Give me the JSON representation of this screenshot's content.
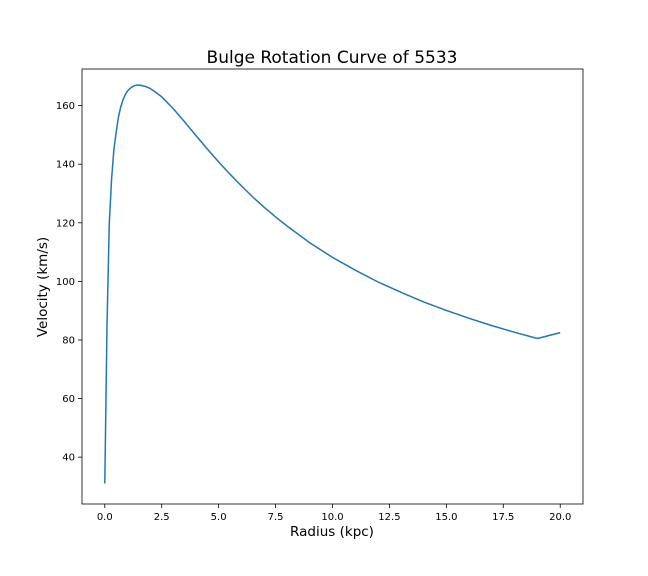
{
  "chart_data": {
    "type": "line",
    "title": "Bulge Rotation Curve of 5533",
    "xlabel": "Radius (kpc)",
    "ylabel": "Velocity (km/s)",
    "xlim": [
      -1.0,
      21.0
    ],
    "ylim": [
      24.0,
      172.5
    ],
    "xticks": [
      "0.0",
      "2.5",
      "5.0",
      "7.5",
      "10.0",
      "12.5",
      "15.0",
      "17.5",
      "20.0"
    ],
    "yticks": [
      "40",
      "60",
      "80",
      "100",
      "120",
      "140",
      "160"
    ],
    "grid": false,
    "series": [
      {
        "color": "#1f77b4",
        "x": [
          0.0,
          0.05,
          0.1,
          0.2,
          0.3,
          0.4,
          0.5,
          0.6,
          0.7,
          0.8,
          0.9,
          1.0,
          1.1,
          1.2,
          1.3,
          1.4,
          1.5,
          1.6,
          1.8,
          2.0,
          2.2,
          2.5,
          3.0,
          3.5,
          4.0,
          4.5,
          5.0,
          5.5,
          6.0,
          6.5,
          7.0,
          7.5,
          8.0,
          9.0,
          10.0,
          11.0,
          12.0,
          13.0,
          14.0,
          15.0,
          16.0,
          17.0,
          18.0,
          19.0,
          20.0
        ],
        "y": [
          31,
          58,
          85,
          120,
          135,
          145,
          151,
          156,
          159.5,
          162,
          163.8,
          165.0,
          165.8,
          166.4,
          166.8,
          167.0,
          167.0,
          166.9,
          166.5,
          165.8,
          164.8,
          163.0,
          159.0,
          154.5,
          149.8,
          145.2,
          140.8,
          136.6,
          132.6,
          128.8,
          125.3,
          122.0,
          118.9,
          113.2,
          108.2,
          103.8,
          99.8,
          96.3,
          93.0,
          90.1,
          87.4,
          84.9,
          82.6,
          80.5,
          82.5
        ]
      }
    ]
  }
}
